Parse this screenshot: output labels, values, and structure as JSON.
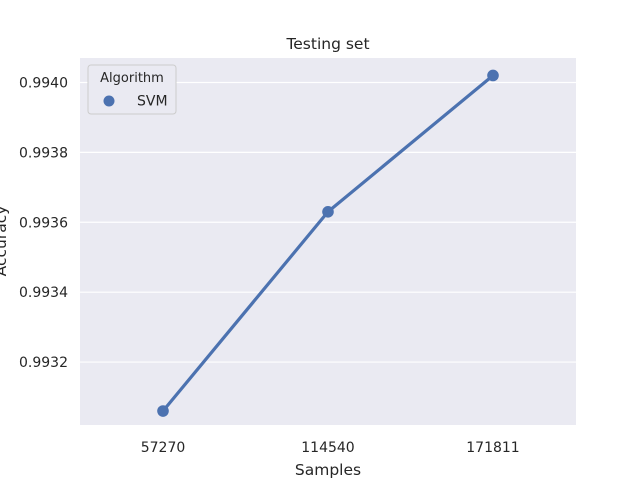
{
  "chart_data": {
    "type": "line",
    "title": "Testing set",
    "xlabel": "Samples",
    "ylabel": "Accuracy",
    "categories": [
      "57270",
      "114540",
      "171811"
    ],
    "series": [
      {
        "name": "SVM",
        "values": [
          0.99306,
          0.99363,
          0.99402
        ],
        "color": "#4c72b0"
      }
    ],
    "ylim": [
      0.99302,
      0.99407
    ],
    "yticks": [
      0.9932,
      0.9934,
      0.9936,
      0.9938,
      0.994
    ],
    "ytick_labels": [
      "0.9932",
      "0.9934",
      "0.9936",
      "0.9938",
      "0.9940"
    ],
    "legend": {
      "title": "Algorithm",
      "placement": "top-left"
    },
    "grid": true,
    "background": "#eaeaf2",
    "grid_color": "#ffffff"
  }
}
